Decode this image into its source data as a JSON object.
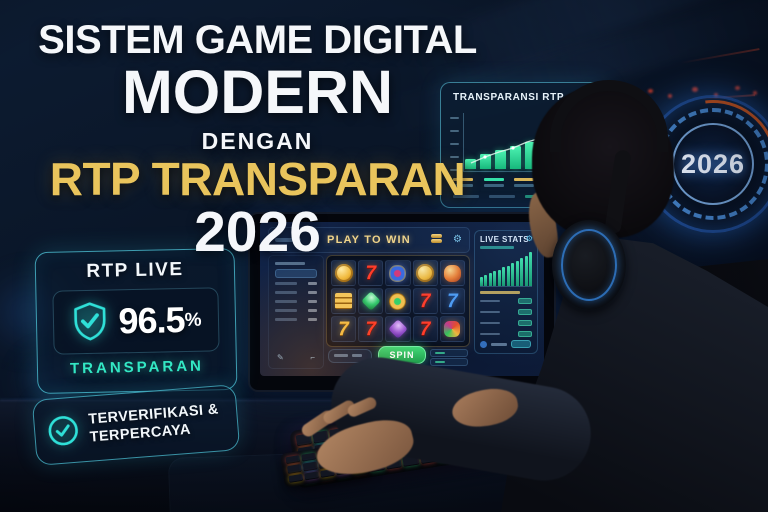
{
  "headline": {
    "line1": "SISTEM GAME DIGITAL",
    "line2": "MODERN",
    "line3": "DENGAN",
    "line4": "RTP TRANSPARAN",
    "line5": "2026"
  },
  "year_ring": {
    "label": "2026"
  },
  "transparansi_panel": {
    "title": "TRANSPARANSI RTP",
    "chart_data": {
      "type": "bar",
      "values": [
        10,
        15,
        19,
        23,
        27,
        32,
        38,
        45,
        56
      ],
      "trend": "rising",
      "color": "#2fe6a0",
      "legend_position": "bottom"
    }
  },
  "rtp_live_panel": {
    "title": "RTP LIVE",
    "value": "96.5",
    "unit": "%",
    "caption": "TRANSPARAN",
    "icon": "shield-check-icon"
  },
  "verified_badge": {
    "line1": "TERVERIFIKASI &",
    "line2": "TERPERCAYA",
    "icon": "circle-check-icon"
  },
  "game_screen": {
    "header": "PLAY TO WIN",
    "spin_label": "SPIN",
    "live_stats": {
      "title": "LIVE STATS",
      "chart_data": {
        "type": "bar",
        "values": [
          7,
          9,
          10,
          12,
          13,
          15,
          16,
          18,
          20,
          22,
          24,
          27
        ],
        "color": "#2fe6a0"
      }
    },
    "slot_symbols": [
      [
        "gold-coin",
        "red-7",
        "blue-flower-gem",
        "gold-coin",
        "orange-gem"
      ],
      [
        "gold-bars",
        "green-gem",
        "gold-medallion",
        "red-7",
        "blue-7"
      ],
      [
        "gold-7",
        "red-7",
        "purple-gem",
        "red-7",
        "multicolor-gem"
      ]
    ]
  },
  "colors": {
    "gold": "#e9c45c",
    "teal": "#35e0c5",
    "panel_border": "#3fc9e0",
    "chart_green": "#2fe6a0",
    "spin_green": "#28b35c",
    "ring_blue": "#3f8cf0"
  }
}
